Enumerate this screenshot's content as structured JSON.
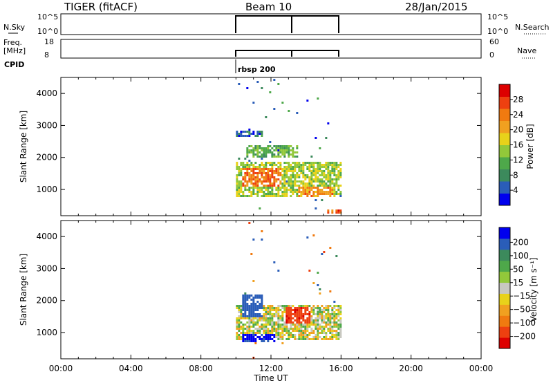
{
  "header": {
    "left_title": "TIGER (fitACF)",
    "center_title": "Beam 10",
    "right_title": "28/Jan/2015"
  },
  "strips": {
    "nsky_label": "N.Sky",
    "nsky_ticks": [
      "10^5",
      "10^0"
    ],
    "nsearch_label": "N.Search",
    "freq_label": "Freq.",
    "freq_unit": "[MHz]",
    "freq_ticks": [
      "18",
      "8"
    ],
    "nave_ticks": [
      "60",
      "0"
    ],
    "nave_label": "Nave",
    "cpid_label": "CPID",
    "cpid_value": "rbsp 200"
  },
  "xaxis": {
    "label": "Time UT",
    "ticks": [
      "00:00",
      "04:00",
      "08:00",
      "12:00",
      "16:00",
      "20:00",
      "00:00"
    ],
    "range_hours": [
      0,
      24
    ]
  },
  "panels": [
    {
      "ylabel": "Slant Range [km]",
      "yticks": [
        "1000",
        "2000",
        "3000",
        "4000"
      ],
      "colorbar_label": "Power [dB]",
      "colorbar_ticks": [
        "4",
        "8",
        "12",
        "16",
        "20",
        "24",
        "28"
      ]
    },
    {
      "ylabel": "Slant Range [km]",
      "yticks": [
        "1000",
        "2000",
        "3000",
        "4000"
      ],
      "colorbar_label": "Velocity [m s⁻¹]",
      "colorbar_ticks": [
        "-200",
        "-100",
        "-50",
        "-15",
        "15",
        "50",
        "100",
        "200"
      ]
    }
  ],
  "chart_data": [
    {
      "type": "heatmap",
      "title": "Power",
      "xlabel": "Time UT",
      "ylabel": "Slant Range [km]",
      "xlim": [
        0,
        24
      ],
      "ylim": [
        180,
        4500
      ],
      "colorbar": {
        "label": "Power [dB]",
        "range": [
          0,
          32
        ],
        "ticks": [
          4,
          8,
          12,
          16,
          20,
          24,
          28
        ],
        "colors": [
          "#0000ee",
          "#2a5db8",
          "#3c8a5c",
          "#4ea84a",
          "#92c83a",
          "#e8d21a",
          "#f0a020",
          "#f07a10",
          "#ee4010",
          "#dd0000"
        ]
      },
      "data_extent_hours": [
        10,
        16
      ],
      "regions": [
        {
          "t": [
            10.0,
            16.0
          ],
          "range_km": [
            800,
            1900
          ],
          "value_db": 15
        },
        {
          "t": [
            10.3,
            12.5
          ],
          "range_km": [
            1100,
            1700
          ],
          "value_db": 24
        },
        {
          "t": [
            13.5,
            15.5
          ],
          "range_km": [
            800,
            1100
          ],
          "value_db": 22
        },
        {
          "t": [
            15.2,
            16.0
          ],
          "range_km": [
            250,
            420
          ],
          "value_db": 26
        },
        {
          "t": [
            10.0,
            11.5
          ],
          "range_km": [
            2700,
            2900
          ],
          "value_db": 6
        },
        {
          "t": [
            10.5,
            13.5
          ],
          "range_km": [
            2000,
            2400
          ],
          "value_db": 12
        }
      ]
    },
    {
      "type": "heatmap",
      "title": "Velocity",
      "xlabel": "Time UT",
      "ylabel": "Slant Range [km]",
      "xlim": [
        0,
        24
      ],
      "ylim": [
        180,
        4500
      ],
      "colorbar": {
        "label": "Velocity [m s⁻¹]",
        "ticks": [
          -200,
          -100,
          -50,
          -15,
          15,
          50,
          100,
          200
        ],
        "colors": [
          "#dd0000",
          "#ee4010",
          "#f07a10",
          "#f0a020",
          "#e8d21a",
          "#c8c8c0",
          "#92c83a",
          "#4ea84a",
          "#3c8a5c",
          "#2a5db8",
          "#0000ee"
        ]
      },
      "data_extent_hours": [
        10,
        16
      ],
      "regions": [
        {
          "t": [
            10.0,
            16.0
          ],
          "range_km": [
            800,
            1900
          ],
          "value_ms": 0
        },
        {
          "t": [
            10.3,
            12.2
          ],
          "range_km": [
            700,
            1000
          ],
          "value_ms": 220
        },
        {
          "t": [
            12.8,
            14.2
          ],
          "range_km": [
            1300,
            1800
          ],
          "value_ms": -180
        },
        {
          "t": [
            10.3,
            11.5
          ],
          "range_km": [
            1500,
            2200
          ],
          "value_ms": 150
        }
      ]
    }
  ]
}
